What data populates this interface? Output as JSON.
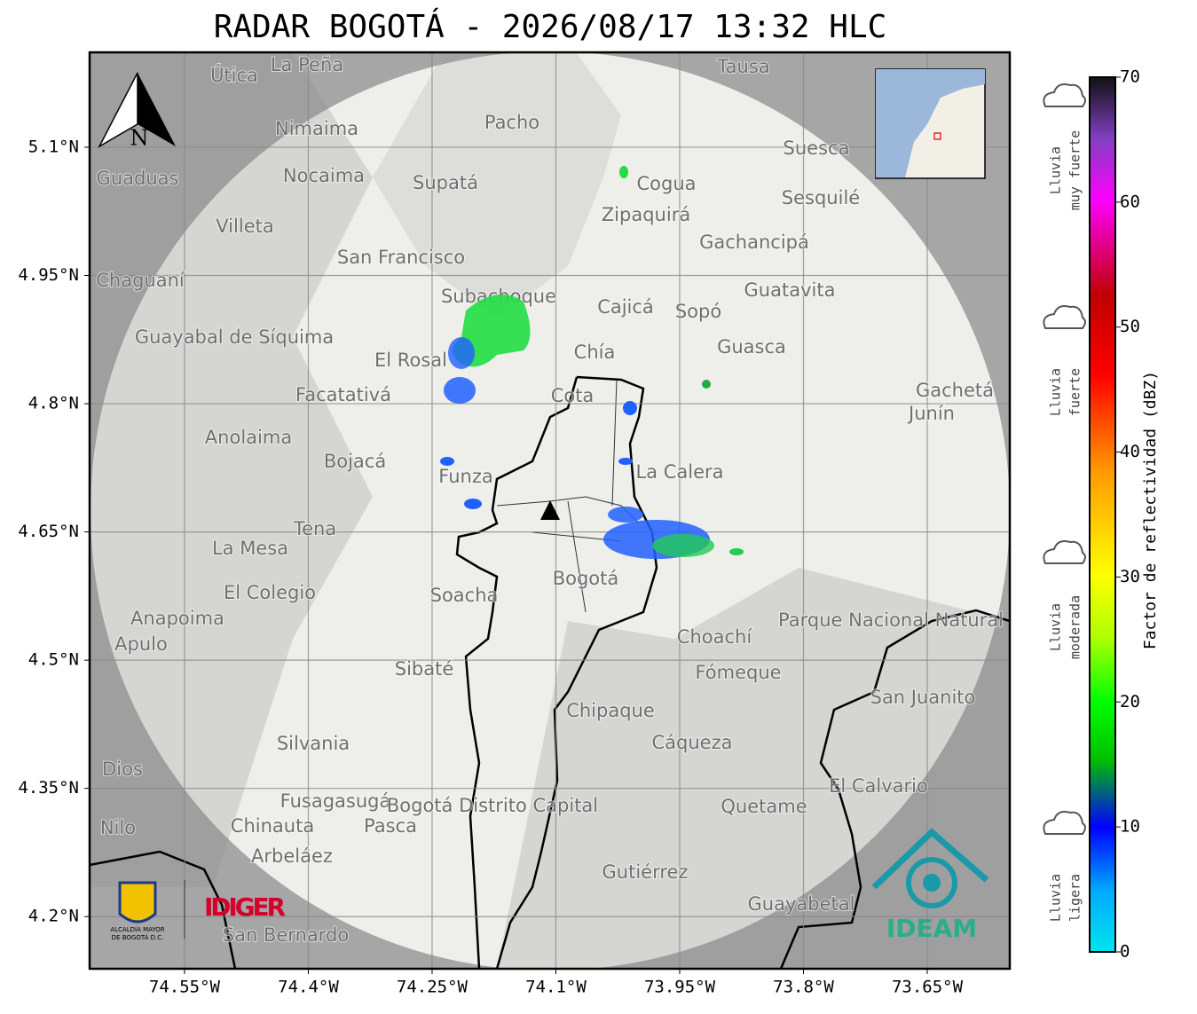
{
  "title": "RADAR BOGOTÁ - 2026/08/17 13:32 HLC",
  "map": {
    "lat_range": [
      5.211,
      4.139
    ],
    "lon_range": [
      74.665,
      73.55
    ],
    "lat_ticks": [
      {
        "value": 5.1,
        "label": "5.1°N"
      },
      {
        "value": 4.95,
        "label": "4.95°N"
      },
      {
        "value": 4.8,
        "label": "4.8°N"
      },
      {
        "value": 4.65,
        "label": "4.65°N"
      },
      {
        "value": 4.5,
        "label": "4.5°N"
      },
      {
        "value": 4.35,
        "label": "4.35°N"
      },
      {
        "value": 4.2,
        "label": "4.2°N"
      }
    ],
    "lon_ticks": [
      {
        "value": 74.55,
        "label": "74.55°W"
      },
      {
        "value": 74.4,
        "label": "74.4°W"
      },
      {
        "value": 74.25,
        "label": "74.25°W"
      },
      {
        "value": 74.1,
        "label": "74.1°W"
      },
      {
        "value": 73.95,
        "label": "73.95°W"
      },
      {
        "value": 73.8,
        "label": "73.8°W"
      },
      {
        "value": 73.65,
        "label": "73.65°W"
      }
    ],
    "north_label": "N",
    "places": [
      "La Peña",
      "Útica",
      "Tausa",
      "Pacho",
      "Nimaima",
      "Suesca",
      "Nocaima",
      "Supatá",
      "Guaduas",
      "Cogua",
      "Sesquilé",
      "Villeta",
      "Zipaquirá",
      "Gachancipá",
      "San Francisco",
      "Chaguaní",
      "Guatavita",
      "Subachoque",
      "Cajicá",
      "Sopó",
      "Guayabal de Síquima",
      "Chía",
      "Guasca",
      "El Rosal",
      "Facatativá",
      "Cota",
      "Gachetá",
      "Junín",
      "Anolaima",
      "Bojacá",
      "Funza",
      "La Calera",
      "Tena",
      "La Mesa",
      "Bogotá",
      "El Colegio",
      "Soacha",
      "Anapoima",
      "Apulo",
      "Choachí",
      "Sibaté",
      "Fómeque",
      "Parque Nacional Natural Chingaza",
      "San Juanito",
      "Chipaque",
      "Silvania",
      "Cáqueza",
      "Dios",
      "El Calvario",
      "Fusagasugá",
      "Bogotá Distrito Capital",
      "Quetame",
      "Chinauta",
      "Pasca",
      "Nilo",
      "Arbeláez",
      "Gutiérrez",
      "Guayabetal",
      "San Bernardo"
    ]
  },
  "colorbar": {
    "label": "Factor de reflectividad (dBZ)",
    "range": [
      0,
      70
    ],
    "ticks": [
      0,
      10,
      20,
      30,
      40,
      50,
      60,
      70
    ],
    "categories": [
      {
        "lines": [
          "Lluvia",
          "muy fuerte"
        ]
      },
      {
        "lines": [
          "Lluvia",
          "fuerte"
        ]
      },
      {
        "lines": [
          "Lluvia",
          "moderada"
        ]
      },
      {
        "lines": [
          "Lluvia",
          "ligera"
        ]
      }
    ]
  },
  "logos": {
    "alcaldia": [
      "ALCALDÍA MAYOR",
      "DE BOGOTÁ D.C."
    ],
    "idiger": "IDIGER",
    "ideam": "IDEAM"
  }
}
